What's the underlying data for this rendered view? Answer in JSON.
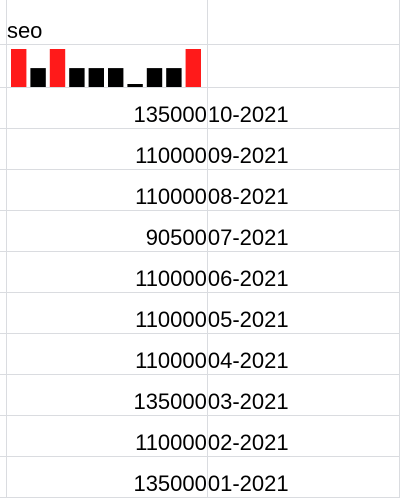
{
  "sheet": {
    "header_cell": "seo",
    "sparkline": {
      "values": [
        135000,
        110000,
        110000,
        90500,
        110000,
        110000,
        110000,
        135000,
        110000,
        135000
      ],
      "highlight_color": "#ff1a1a",
      "normal_color": "#000000"
    },
    "rows": [
      {
        "value": "135000",
        "date": "10-2021"
      },
      {
        "value": "110000",
        "date": "09-2021"
      },
      {
        "value": "110000",
        "date": "08-2021"
      },
      {
        "value": "90500",
        "date": "07-2021"
      },
      {
        "value": "110000",
        "date": "06-2021"
      },
      {
        "value": "110000",
        "date": "05-2021"
      },
      {
        "value": "110000",
        "date": "04-2021"
      },
      {
        "value": "135000",
        "date": "03-2021"
      },
      {
        "value": "110000",
        "date": "02-2021"
      },
      {
        "value": "135000",
        "date": "01-2021"
      }
    ]
  }
}
